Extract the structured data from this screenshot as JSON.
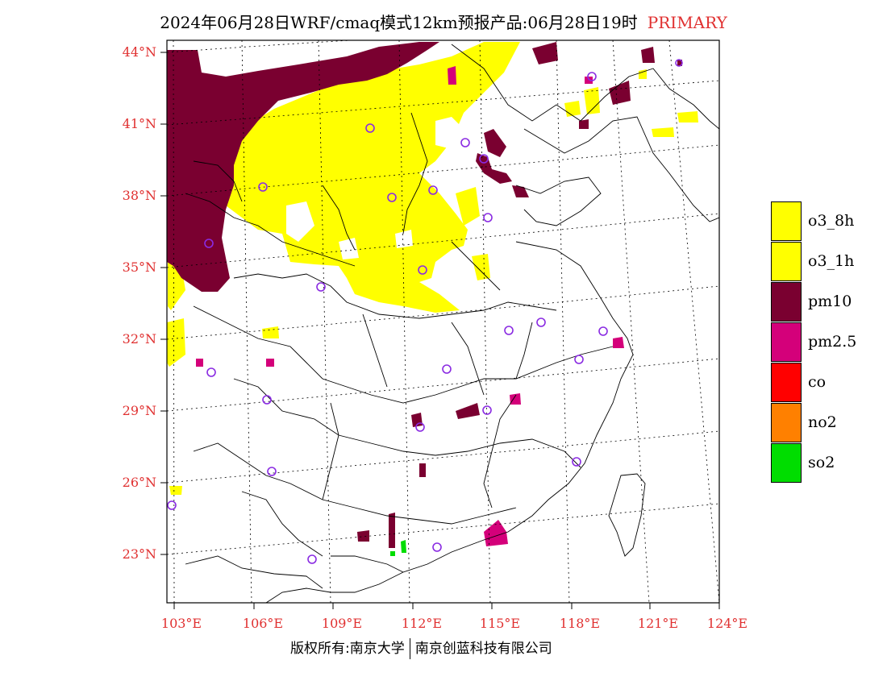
{
  "title": {
    "main": "2024年06月28日WRF/cmaq模式12km预报产品:06月28日19时",
    "tag": "PRIMARY"
  },
  "axes": {
    "lat_labels": [
      "44°N",
      "41°N",
      "38°N",
      "35°N",
      "32°N",
      "29°N",
      "26°N",
      "23°N"
    ],
    "lon_labels": [
      "103°E",
      "106°E",
      "109°E",
      "112°E",
      "115°E",
      "118°E",
      "121°E",
      "124°E"
    ]
  },
  "legend": {
    "items": [
      {
        "label": "o3_8h",
        "color": "#ffff00"
      },
      {
        "label": "o3_1h",
        "color": "#ffff00"
      },
      {
        "label": "pm10",
        "color": "#7a0030"
      },
      {
        "label": "pm2.5",
        "color": "#d4007a"
      },
      {
        "label": "co",
        "color": "#ff0000"
      },
      {
        "label": "no2",
        "color": "#ff8000"
      },
      {
        "label": "so2",
        "color": "#00dd00"
      }
    ]
  },
  "footer": {
    "left": "版权所有:南京大学",
    "right": "南京创蓝科技有限公司"
  },
  "colors": {
    "accent_red": "#e03030",
    "station_circle": "#8a2be2"
  }
}
